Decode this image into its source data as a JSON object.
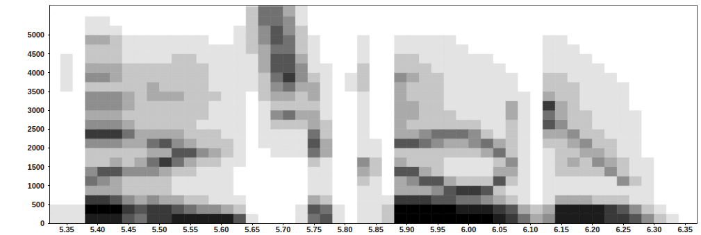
{
  "chart_data": {
    "type": "heatmap",
    "grid": false,
    "xlim": [
      5.323,
      6.369
    ],
    "ylim": [
      0,
      5780
    ],
    "xticks": [
      5.35,
      {
        "value": 5.4,
        "label": "5.40"
      },
      5.45,
      {
        "value": 5.5,
        "label": "5.50"
      },
      5.55,
      {
        "value": 5.6,
        "label": "5.60"
      },
      5.65,
      {
        "value": 5.7,
        "label": "5.70"
      },
      5.75,
      {
        "value": 5.8,
        "label": "5.80"
      },
      5.85,
      {
        "value": 5.9,
        "label": "5.90"
      },
      5.95,
      {
        "value": 6.0,
        "label": "6.00"
      },
      6.05,
      {
        "value": 6.1,
        "label": "6.10"
      },
      6.15,
      {
        "value": 6.2,
        "label": "6.20"
      },
      6.25,
      {
        "value": 6.3,
        "label": "6.30"
      },
      6.35
    ],
    "yticks": [
      0,
      500,
      1000,
      1500,
      2000,
      2500,
      3000,
      3500,
      4000,
      4500,
      5000
    ],
    "zlim": [
      0,
      9
    ],
    "x_bins": [
      5.32,
      5.34,
      5.36,
      5.38,
      5.4,
      5.42,
      5.44,
      5.46,
      5.48,
      5.5,
      5.52,
      5.54,
      5.56,
      5.58,
      5.6,
      5.62,
      5.64,
      5.66,
      5.68,
      5.7,
      5.72,
      5.74,
      5.76,
      5.78,
      5.8,
      5.82,
      5.84,
      5.86,
      5.88,
      5.9,
      5.92,
      5.94,
      5.96,
      5.98,
      6.0,
      6.02,
      6.04,
      6.06,
      6.08,
      6.1,
      6.12,
      6.14,
      6.16,
      6.18,
      6.2,
      6.22,
      6.24,
      6.26,
      6.28,
      6.3,
      6.32,
      6.34,
      6.36,
      6.38
    ],
    "y_bins": [
      0,
      250,
      500,
      750,
      1000,
      1250,
      1500,
      1750,
      2000,
      2250,
      2500,
      2750,
      3000,
      3250,
      3500,
      3750,
      4000,
      4250,
      4500,
      4750,
      5000,
      5250,
      5500,
      5750,
      6000
    ],
    "cells": [
      [
        1,
        1,
        0,
        0,
        0,
        0,
        0,
        0,
        0,
        0,
        0,
        0,
        0,
        0,
        0,
        0,
        0,
        0,
        0,
        0,
        0,
        0,
        0,
        0
      ],
      [
        1,
        1,
        0,
        0,
        0,
        0,
        0,
        0,
        0,
        0,
        0,
        0,
        0,
        0,
        1,
        1,
        1,
        1,
        0,
        0,
        0,
        0,
        0,
        0
      ],
      [
        1,
        1,
        0,
        0,
        0,
        0,
        0,
        0,
        0,
        0,
        0,
        0,
        0,
        0,
        0,
        0,
        0,
        0,
        0,
        0,
        0,
        0,
        0,
        0
      ],
      [
        8,
        9,
        7,
        3,
        5,
        4,
        2,
        2,
        4,
        7,
        4,
        3,
        4,
        4,
        2,
        4,
        3,
        2,
        2,
        3,
        1,
        1,
        0,
        0
      ],
      [
        8,
        9,
        7,
        3,
        4,
        6,
        2,
        2,
        4,
        7,
        4,
        3,
        4,
        4,
        2,
        4,
        3,
        2,
        2,
        3,
        1,
        1,
        0,
        0
      ],
      [
        8,
        9,
        6,
        3,
        3,
        6,
        3,
        2,
        4,
        7,
        4,
        3,
        4,
        4,
        2,
        3,
        3,
        2,
        2,
        2,
        1,
        0,
        0,
        0
      ],
      [
        6,
        7,
        4,
        2,
        2,
        4,
        2,
        2,
        3,
        5,
        3,
        2,
        3,
        3,
        2,
        2,
        2,
        1,
        1,
        1,
        0,
        0,
        0,
        0
      ],
      [
        5,
        6,
        3,
        2,
        2,
        4,
        3,
        2,
        3,
        3,
        2,
        2,
        2,
        2,
        2,
        2,
        2,
        1,
        1,
        1,
        0,
        0,
        0,
        0
      ],
      [
        7,
        7,
        4,
        2,
        2,
        4,
        5,
        3,
        5,
        3,
        2,
        2,
        2,
        3,
        3,
        2,
        2,
        1,
        1,
        1,
        0,
        0,
        0,
        0
      ],
      [
        7,
        7,
        3,
        2,
        2,
        3,
        7,
        3,
        6,
        3,
        2,
        2,
        2,
        3,
        2,
        2,
        2,
        1,
        1,
        1,
        0,
        0,
        0,
        0
      ],
      [
        8,
        6,
        3,
        1,
        1,
        2,
        5,
        6,
        4,
        3,
        2,
        2,
        2,
        3,
        2,
        2,
        2,
        2,
        1,
        1,
        0,
        0,
        0,
        0
      ],
      [
        8,
        5,
        2,
        1,
        1,
        2,
        3,
        6,
        3,
        2,
        2,
        2,
        2,
        2,
        2,
        2,
        2,
        2,
        1,
        1,
        0,
        0,
        0,
        0
      ],
      [
        8,
        4,
        2,
        1,
        1,
        1,
        2,
        4,
        2,
        2,
        1,
        2,
        2,
        2,
        2,
        2,
        2,
        1,
        1,
        1,
        0,
        0,
        0,
        0
      ],
      [
        8,
        4,
        1,
        1,
        1,
        1,
        2,
        3,
        2,
        2,
        1,
        1,
        1,
        2,
        1,
        1,
        1,
        1,
        1,
        0,
        0,
        0,
        0,
        0
      ],
      [
        8,
        3,
        1,
        1,
        1,
        1,
        1,
        2,
        2,
        1,
        1,
        1,
        1,
        1,
        1,
        1,
        1,
        1,
        1,
        0,
        0,
        0,
        0,
        0
      ],
      [
        6,
        2,
        1,
        0,
        0,
        0,
        1,
        1,
        1,
        1,
        1,
        1,
        1,
        1,
        1,
        1,
        1,
        1,
        1,
        1,
        1,
        0,
        0,
        0
      ],
      [
        1,
        0,
        0,
        0,
        0,
        0,
        0,
        0,
        0,
        0,
        0,
        0,
        0,
        0,
        1,
        1,
        1,
        1,
        2,
        2,
        2,
        2,
        2,
        1
      ],
      [
        0,
        0,
        0,
        0,
        0,
        0,
        0,
        0,
        1,
        1,
        1,
        1,
        1,
        2,
        2,
        2,
        3,
        3,
        3,
        4,
        4,
        5,
        5,
        4
      ],
      [
        0,
        0,
        0,
        0,
        0,
        0,
        0,
        1,
        1,
        1,
        2,
        4,
        2,
        3,
        4,
        5,
        6,
        6,
        5,
        6,
        6,
        5,
        5,
        4
      ],
      [
        0,
        0,
        0,
        0,
        0,
        0,
        0,
        1,
        1,
        1,
        2,
        5,
        2,
        3,
        5,
        7,
        6,
        6,
        5,
        5,
        4,
        4,
        3,
        3
      ],
      [
        1,
        1,
        0,
        0,
        0,
        0,
        0,
        1,
        1,
        1,
        2,
        3,
        2,
        2,
        3,
        4,
        4,
        3,
        2,
        2,
        2,
        1,
        1,
        1
      ],
      [
        5,
        6,
        3,
        1,
        1,
        1,
        2,
        5,
        6,
        5,
        3,
        3,
        2,
        3,
        3,
        2,
        1,
        1,
        1,
        1,
        0,
        0,
        0,
        0
      ],
      [
        6,
        5,
        2,
        1,
        1,
        1,
        1,
        3,
        3,
        2,
        2,
        1,
        1,
        1,
        1,
        1,
        1,
        0,
        0,
        0,
        0,
        0,
        0,
        0
      ],
      [
        1,
        1,
        0,
        0,
        0,
        0,
        0,
        0,
        0,
        0,
        0,
        0,
        0,
        0,
        0,
        0,
        0,
        0,
        0,
        0,
        0,
        0,
        0,
        0
      ],
      [
        0,
        0,
        0,
        0,
        0,
        0,
        0,
        0,
        0,
        0,
        0,
        0,
        0,
        0,
        1,
        1,
        0,
        0,
        0,
        0,
        0,
        0,
        0,
        0
      ],
      [
        1,
        1,
        1,
        1,
        2,
        3,
        4,
        1,
        1,
        1,
        1,
        1,
        1,
        1,
        2,
        2,
        2,
        1,
        1,
        1,
        0,
        0,
        0,
        0
      ],
      [
        1,
        1,
        1,
        1,
        1,
        2,
        2,
        1,
        1,
        0,
        0,
        0,
        0,
        0,
        0,
        0,
        0,
        0,
        0,
        0,
        0,
        0,
        0,
        0
      ],
      [
        2,
        2,
        1,
        0,
        0,
        0,
        0,
        0,
        0,
        0,
        0,
        0,
        0,
        0,
        0,
        0,
        0,
        0,
        0,
        0,
        0,
        0,
        0,
        0
      ],
      [
        9,
        9,
        7,
        3,
        3,
        6,
        3,
        2,
        6,
        3,
        3,
        3,
        3,
        3,
        3,
        4,
        2,
        2,
        1,
        1,
        0,
        0,
        0,
        0
      ],
      [
        9,
        9,
        7,
        3,
        4,
        6,
        2,
        2,
        6,
        3,
        2,
        3,
        3,
        2,
        2,
        3,
        2,
        2,
        1,
        1,
        0,
        0,
        0,
        0
      ],
      [
        9,
        9,
        7,
        3,
        6,
        3,
        2,
        2,
        5,
        4,
        2,
        2,
        2,
        2,
        2,
        2,
        2,
        1,
        1,
        1,
        0,
        0,
        0,
        0
      ],
      [
        9,
        9,
        6,
        4,
        6,
        2,
        2,
        2,
        4,
        5,
        2,
        2,
        2,
        2,
        2,
        2,
        1,
        1,
        1,
        1,
        0,
        0,
        0,
        0
      ],
      [
        9,
        9,
        6,
        6,
        3,
        1,
        1,
        2,
        3,
        5,
        2,
        2,
        1,
        1,
        1,
        1,
        1,
        1,
        1,
        1,
        0,
        0,
        0,
        0
      ],
      [
        9,
        8,
        5,
        7,
        2,
        1,
        1,
        2,
        3,
        5,
        2,
        1,
        1,
        1,
        1,
        1,
        1,
        1,
        1,
        0,
        0,
        0,
        0,
        0
      ],
      [
        9,
        8,
        5,
        7,
        2,
        1,
        1,
        2,
        4,
        4,
        2,
        1,
        1,
        1,
        1,
        1,
        1,
        1,
        0,
        0,
        0,
        0,
        0,
        0
      ],
      [
        9,
        8,
        4,
        6,
        2,
        1,
        1,
        3,
        5,
        2,
        1,
        1,
        1,
        1,
        1,
        1,
        1,
        1,
        0,
        0,
        0,
        0,
        0,
        0
      ],
      [
        8,
        7,
        3,
        2,
        6,
        3,
        2,
        5,
        3,
        1,
        1,
        1,
        1,
        1,
        1,
        1,
        1,
        0,
        0,
        0,
        0,
        0,
        0,
        0
      ],
      [
        7,
        6,
        2,
        1,
        2,
        3,
        4,
        2,
        2,
        2,
        2,
        3,
        3,
        1,
        1,
        1,
        0,
        0,
        0,
        0,
        0,
        0,
        0,
        0
      ],
      [
        5,
        3,
        1,
        1,
        1,
        1,
        1,
        1,
        1,
        1,
        1,
        1,
        1,
        1,
        0,
        0,
        0,
        0,
        0,
        0,
        0,
        0,
        0,
        0
      ],
      [
        3,
        2,
        0,
        0,
        0,
        0,
        0,
        0,
        0,
        0,
        0,
        0,
        0,
        0,
        0,
        0,
        0,
        0,
        0,
        0,
        0,
        0,
        0,
        0
      ],
      [
        4,
        3,
        1,
        1,
        1,
        1,
        1,
        1,
        2,
        3,
        6,
        5,
        7,
        3,
        2,
        2,
        1,
        1,
        1,
        1,
        0,
        0,
        0,
        0
      ],
      [
        8,
        8,
        3,
        1,
        1,
        2,
        2,
        2,
        2,
        3,
        4,
        3,
        3,
        2,
        2,
        2,
        1,
        1,
        1,
        1,
        0,
        0,
        0,
        0
      ],
      [
        8,
        8,
        3,
        1,
        1,
        2,
        3,
        2,
        3,
        4,
        2,
        2,
        2,
        2,
        2,
        1,
        1,
        1,
        1,
        0,
        0,
        0,
        0,
        0
      ],
      [
        8,
        8,
        3,
        1,
        1,
        2,
        2,
        3,
        4,
        2,
        2,
        2,
        1,
        1,
        1,
        1,
        1,
        1,
        0,
        0,
        0,
        0,
        0,
        0
      ],
      [
        8,
        8,
        2,
        1,
        1,
        2,
        4,
        3,
        2,
        2,
        1,
        1,
        1,
        1,
        1,
        1,
        1,
        0,
        0,
        0,
        0,
        0,
        0,
        0
      ],
      [
        7,
        7,
        2,
        1,
        1,
        4,
        3,
        2,
        2,
        1,
        1,
        1,
        1,
        1,
        1,
        1,
        0,
        0,
        0,
        0,
        0,
        0,
        0,
        0
      ],
      [
        7,
        6,
        2,
        1,
        4,
        2,
        2,
        1,
        1,
        1,
        1,
        1,
        1,
        1,
        1,
        0,
        0,
        0,
        0,
        0,
        0,
        0,
        0,
        0
      ],
      [
        6,
        4,
        1,
        1,
        2,
        1,
        1,
        1,
        1,
        1,
        1,
        1,
        0,
        0,
        0,
        0,
        0,
        0,
        0,
        0,
        0,
        0,
        0,
        0
      ],
      [
        4,
        2,
        1,
        1,
        1,
        1,
        1,
        0,
        0,
        0,
        0,
        0,
        0,
        0,
        0,
        0,
        0,
        0,
        0,
        0,
        0,
        0,
        0,
        0
      ],
      [
        2,
        1,
        0,
        0,
        0,
        0,
        0,
        0,
        0,
        0,
        0,
        0,
        0,
        0,
        0,
        0,
        0,
        0,
        0,
        0,
        0,
        0,
        0,
        0
      ],
      [
        1,
        0,
        0,
        0,
        0,
        0,
        0,
        0,
        0,
        0,
        0,
        0,
        0,
        0,
        0,
        0,
        0,
        0,
        0,
        0,
        0,
        0,
        0,
        0
      ],
      [
        0,
        0,
        0,
        0,
        0,
        0,
        0,
        0,
        0,
        0,
        0,
        0,
        0,
        0,
        0,
        0,
        0,
        0,
        0,
        0,
        0,
        0,
        0,
        0
      ],
      [
        0,
        0,
        0,
        0,
        0,
        0,
        0,
        0,
        0,
        0,
        0,
        0,
        0,
        0,
        0,
        0,
        0,
        0,
        0,
        0,
        0,
        0,
        0,
        0
      ]
    ]
  }
}
